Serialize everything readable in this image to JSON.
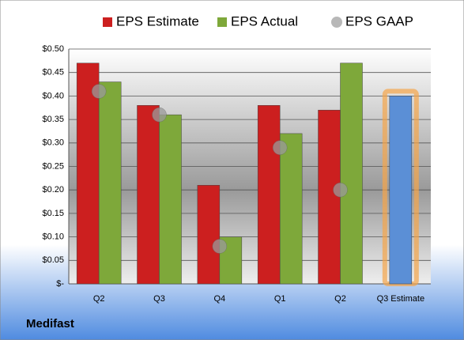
{
  "chart_data": {
    "type": "bar",
    "company": "Medifast",
    "categories": [
      "Q2",
      "Q3",
      "Q4",
      "Q1",
      "Q2",
      "Q3 Estimate"
    ],
    "series": [
      {
        "name": "EPS Estimate",
        "color": "#cc1f1f",
        "colors": [
          "#cc1f1f",
          "#cc1f1f",
          "#cc1f1f",
          "#cc1f1f",
          "#cc1f1f",
          "#5b8fd6"
        ],
        "values": [
          0.47,
          0.38,
          0.21,
          0.38,
          0.37,
          0.4
        ]
      },
      {
        "name": "EPS Actual",
        "color": "#7ea83a",
        "values": [
          0.43,
          0.36,
          0.1,
          0.32,
          0.47,
          null
        ]
      },
      {
        "name": "EPS GAAP",
        "color": "#9a9a9a",
        "marker": "circle",
        "values": [
          0.41,
          0.36,
          0.08,
          0.29,
          0.2,
          null
        ]
      }
    ],
    "ylim": [
      0,
      0.5
    ],
    "yticks": [
      {
        "value": 0,
        "label": "$-"
      },
      {
        "value": 0.05,
        "label": "$0.05"
      },
      {
        "value": 0.1,
        "label": "$0.10"
      },
      {
        "value": 0.15,
        "label": "$0.15"
      },
      {
        "value": 0.2,
        "label": "$0.20"
      },
      {
        "value": 0.25,
        "label": "$0.25"
      },
      {
        "value": 0.3,
        "label": "$0.30"
      },
      {
        "value": 0.35,
        "label": "$0.35"
      },
      {
        "value": 0.4,
        "label": "$0.40"
      },
      {
        "value": 0.45,
        "label": "$0.45"
      },
      {
        "value": 0.5,
        "label": "$0.50"
      }
    ],
    "grid": true
  }
}
